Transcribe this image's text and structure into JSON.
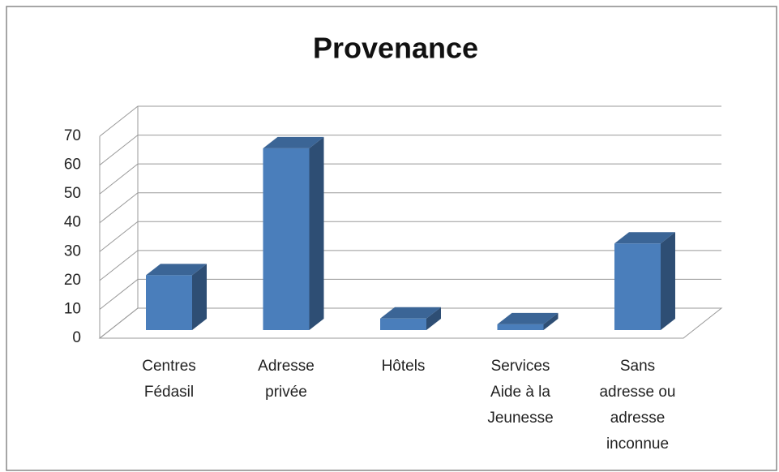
{
  "chart_data": {
    "type": "bar3d",
    "title": "Provenance",
    "categories": [
      "Centres Fédasil",
      "Adresse privée",
      "Hôtels",
      "Services Aide à la Jeunesse",
      "Sans adresse ou adresse inconnue"
    ],
    "values": [
      19,
      63,
      4,
      2,
      30
    ],
    "color": "#4a7ebb",
    "ylim": [
      0,
      70
    ],
    "yticks": [
      0,
      10,
      20,
      30,
      40,
      50,
      60,
      70
    ],
    "grid": true
  }
}
